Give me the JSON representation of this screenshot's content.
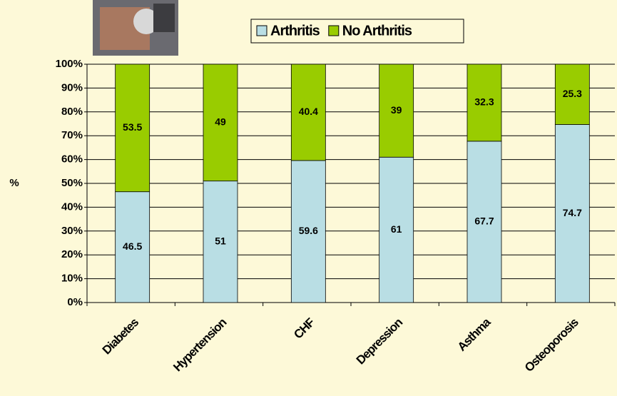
{
  "chart_data": {
    "type": "stacked_bar",
    "categories": [
      "Diabetes",
      "Hypertension",
      "CHF",
      "Depression",
      "Asthma",
      "Osteoporosis"
    ],
    "series": [
      {
        "name": "Arthritis",
        "color": "#b9dee4",
        "values": [
          46.5,
          51,
          59.6,
          61,
          67.7,
          74.7
        ]
      },
      {
        "name": "No Arthritis",
        "color": "#99cc00",
        "values": [
          53.5,
          49,
          40.4,
          39,
          32.3,
          25.3
        ]
      }
    ],
    "y_label": "%",
    "ylim": [
      0,
      100
    ],
    "yticks": [
      {
        "value": 0,
        "label": "0%"
      },
      {
        "value": 10,
        "label": "10%"
      },
      {
        "value": 20,
        "label": "20%"
      },
      {
        "value": 30,
        "label": "30%"
      },
      {
        "value": 40,
        "label": "40%"
      },
      {
        "value": 50,
        "label": "50%"
      },
      {
        "value": 60,
        "label": "60%"
      },
      {
        "value": 70,
        "label": "70%"
      },
      {
        "value": 80,
        "label": "80%"
      },
      {
        "value": 90,
        "label": "90%"
      },
      {
        "value": 100,
        "label": "100%"
      }
    ],
    "grid": true,
    "legend": "top"
  }
}
